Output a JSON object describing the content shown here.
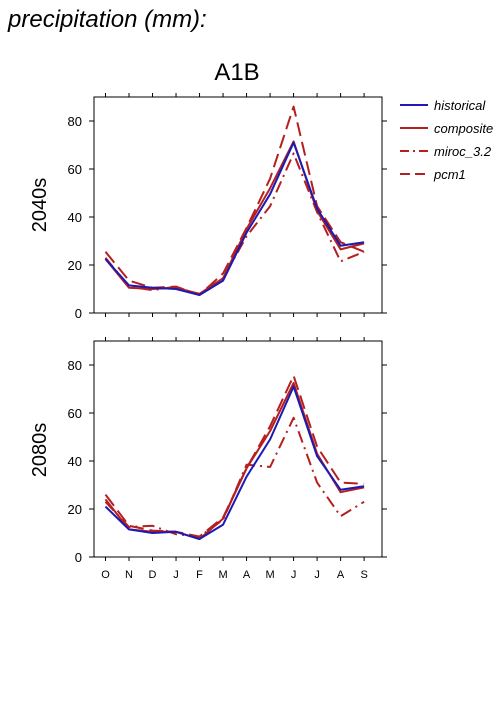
{
  "page_title": "precipitation (mm):",
  "colors": {
    "historical": "#1b1bb4",
    "model": "#b51f1f"
  },
  "chart_data": [
    {
      "type": "line",
      "title": "A1B",
      "ylabel": "2040s",
      "xlabel": "",
      "categories": [
        "O",
        "N",
        "D",
        "J",
        "F",
        "M",
        "A",
        "M",
        "J",
        "J",
        "A",
        "S"
      ],
      "ylim": [
        0,
        90
      ],
      "yticks": [
        0,
        20,
        40,
        60,
        80
      ],
      "grid": false,
      "legend": "right",
      "series": [
        {
          "name": "historical",
          "style": "solid",
          "color": "#1b1bb4",
          "values": [
            22.5,
            11.5,
            10.5,
            10.0,
            7.5,
            13.5,
            33.5,
            49.5,
            71.0,
            43.5,
            28.0,
            29.5
          ]
        },
        {
          "name": "composite",
          "style": "solid",
          "color": "#b51f1f",
          "values": [
            22.5,
            10.5,
            10.0,
            10.5,
            8.0,
            14.5,
            35.0,
            52.0,
            71.5,
            42.5,
            26.5,
            29.0
          ]
        },
        {
          "name": "miroc_3.2",
          "style": "dashdot",
          "color": "#b51f1f",
          "values": [
            23.0,
            11.0,
            9.5,
            11.0,
            7.5,
            14.5,
            32.0,
            44.5,
            66.5,
            42.0,
            21.5,
            25.5
          ]
        },
        {
          "name": "pcm1",
          "style": "dashed",
          "color": "#b51f1f",
          "values": [
            25.5,
            13.5,
            10.5,
            11.0,
            7.5,
            16.5,
            35.5,
            56.0,
            86.0,
            44.5,
            29.5,
            25.5
          ]
        }
      ]
    },
    {
      "type": "line",
      "title": "",
      "ylabel": "2080s",
      "xlabel": "",
      "categories": [
        "O",
        "N",
        "D",
        "J",
        "F",
        "M",
        "A",
        "M",
        "J",
        "J",
        "A",
        "S"
      ],
      "ylim": [
        0,
        90
      ],
      "yticks": [
        0,
        20,
        40,
        60,
        80
      ],
      "grid": false,
      "series": [
        {
          "name": "historical",
          "style": "solid",
          "color": "#1b1bb4",
          "values": [
            21.0,
            11.5,
            10.0,
            10.5,
            7.5,
            13.5,
            33.5,
            49.0,
            71.0,
            42.0,
            28.0,
            29.5
          ]
        },
        {
          "name": "composite",
          "style": "solid",
          "color": "#b51f1f",
          "values": [
            24.0,
            11.5,
            10.5,
            10.5,
            7.5,
            16.0,
            37.0,
            52.5,
            72.5,
            43.0,
            27.0,
            29.0
          ]
        },
        {
          "name": "miroc_3.2",
          "style": "dashdot",
          "color": "#b51f1f",
          "values": [
            23.0,
            12.5,
            13.0,
            9.5,
            8.5,
            15.5,
            38.5,
            37.5,
            58.0,
            31.0,
            17.0,
            23.0
          ]
        },
        {
          "name": "pcm1",
          "style": "dashed",
          "color": "#b51f1f",
          "values": [
            26.0,
            13.0,
            11.0,
            10.5,
            8.5,
            16.5,
            37.0,
            54.5,
            75.5,
            46.0,
            31.0,
            30.5
          ]
        }
      ]
    }
  ]
}
